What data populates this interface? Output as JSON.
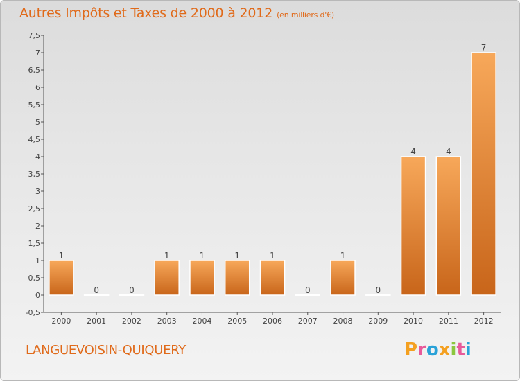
{
  "header": {
    "title": "Autres Impôts et Taxes de 2000 à 2012",
    "unit": "(en milliers d'€)"
  },
  "footer": {
    "commune": "LANGUEVOISIN-QUIQUERY",
    "logo_letters": [
      "P",
      "r",
      "o",
      "x",
      "i",
      "t",
      "i"
    ],
    "logo_colors": [
      "#f4a020",
      "#e85a9a",
      "#2aa2d8",
      "#f4a020",
      "#8cc63f",
      "#e85a9a",
      "#2aa2d8"
    ]
  },
  "chart_data": {
    "type": "bar",
    "categories": [
      "2000",
      "2001",
      "2002",
      "2003",
      "2004",
      "2005",
      "2006",
      "2007",
      "2008",
      "2009",
      "2010",
      "2011",
      "2012"
    ],
    "values": [
      1,
      0,
      0,
      1,
      1,
      1,
      1,
      0,
      1,
      0,
      4,
      4,
      7
    ],
    "data_labels": [
      "1",
      "0",
      "0",
      "1",
      "1",
      "1",
      "1",
      "0",
      "1",
      "0",
      "4",
      "4",
      "7"
    ],
    "title": "Autres Impôts et Taxes de 2000 à 2012",
    "xlabel": "",
    "ylabel": "",
    "ylim": [
      -0.5,
      7.5
    ],
    "yticks": [
      -0.5,
      0,
      0.5,
      1,
      1.5,
      2,
      2.5,
      3,
      3.5,
      4,
      4.5,
      5,
      5.5,
      6,
      6.5,
      7,
      7.5
    ],
    "ytick_labels": [
      "-0,5",
      "0",
      "0,5",
      "1",
      "1,5",
      "2",
      "2,5",
      "3",
      "3,5",
      "4",
      "4,5",
      "5",
      "5,5",
      "6",
      "6,5",
      "7",
      "7,5"
    ],
    "grid": false,
    "colors": {
      "bar_light": "#f7a85a",
      "bar_dark": "#c8651a",
      "axis": "#555555",
      "text": "#444444"
    }
  }
}
